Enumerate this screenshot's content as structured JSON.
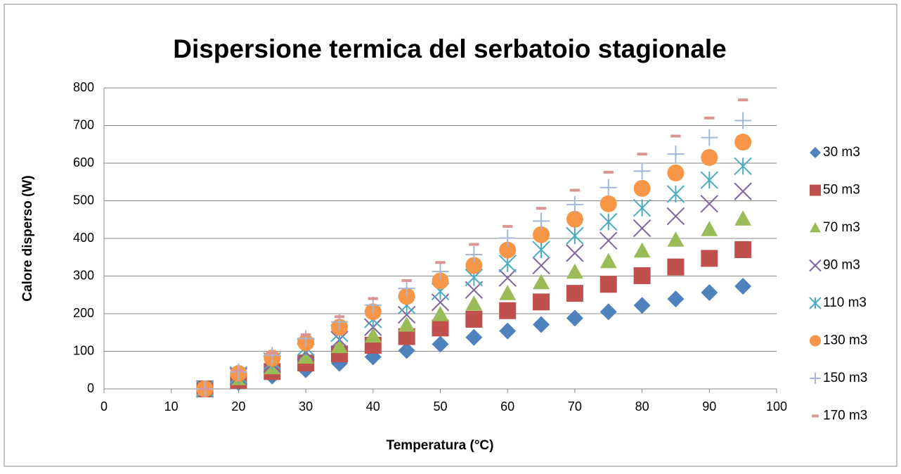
{
  "chart_data": {
    "type": "scatter",
    "title": "Dispersione termica del serbatoio stagionale",
    "xlabel": "Temperatura (°C)",
    "ylabel": "Calore disperso (W)",
    "x": [
      15,
      20,
      25,
      30,
      35,
      40,
      45,
      50,
      55,
      60,
      65,
      70,
      75,
      80,
      85,
      90,
      95
    ],
    "xlim": [
      0,
      100
    ],
    "xticks": [
      0,
      10,
      20,
      30,
      40,
      50,
      60,
      70,
      80,
      90,
      100
    ],
    "ylim": [
      0,
      800
    ],
    "yticks": [
      0,
      100,
      200,
      300,
      400,
      500,
      600,
      700,
      800
    ],
    "grid": true,
    "legend": "right",
    "series": [
      {
        "name": "30 m3",
        "color": "#4f81bd",
        "marker": "diamond",
        "values": [
          0,
          17,
          34,
          51,
          68,
          85,
          102,
          119,
          137,
          154,
          171,
          188,
          205,
          222,
          239,
          256,
          273
        ]
      },
      {
        "name": "50 m3",
        "color": "#c0504d",
        "marker": "square",
        "values": [
          0,
          23,
          46,
          69,
          93,
          116,
          139,
          162,
          185,
          208,
          231,
          254,
          278,
          301,
          324,
          347,
          370
        ]
      },
      {
        "name": "70 m3",
        "color": "#9bbb59",
        "marker": "triangle",
        "values": [
          0,
          28,
          57,
          85,
          113,
          141,
          170,
          198,
          226,
          254,
          283,
          311,
          339,
          367,
          396,
          424,
          452
        ]
      },
      {
        "name": "90 m3",
        "color": "#8064a2",
        "marker": "x",
        "values": [
          0,
          33,
          66,
          98,
          131,
          164,
          197,
          230,
          263,
          295,
          328,
          361,
          394,
          427,
          459,
          492,
          525
        ]
      },
      {
        "name": "110 m3",
        "color": "#4bacc6",
        "marker": "star",
        "values": [
          0,
          37,
          74,
          111,
          148,
          185,
          222,
          259,
          296,
          333,
          370,
          407,
          444,
          481,
          518,
          555,
          592
        ]
      },
      {
        "name": "130 m3",
        "color": "#f79646",
        "marker": "circle",
        "values": [
          0,
          41,
          82,
          123,
          164,
          205,
          246,
          287,
          328,
          369,
          410,
          451,
          492,
          533,
          574,
          615,
          656
        ]
      },
      {
        "name": "150 m3",
        "color": "#a5b6d9",
        "marker": "plus",
        "values": [
          0,
          45,
          89,
          134,
          178,
          223,
          267,
          312,
          357,
          401,
          446,
          490,
          535,
          579,
          624,
          668,
          713
        ]
      },
      {
        "name": "170 m3",
        "color": "#d99694",
        "marker": "dash",
        "values": [
          0,
          48,
          96,
          144,
          192,
          240,
          288,
          336,
          384,
          432,
          480,
          528,
          576,
          624,
          672,
          720,
          768
        ]
      }
    ]
  }
}
